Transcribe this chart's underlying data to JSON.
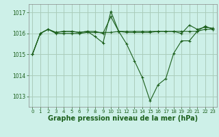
{
  "background_color": "#cdf0e8",
  "grid_color": "#aaccbb",
  "line_color": "#1a5e1a",
  "xlabel": "Graphe pression niveau de la mer (hPa)",
  "xlabel_fontsize": 7,
  "ylim": [
    1012.5,
    1017.4
  ],
  "xlim": [
    -0.5,
    23.5
  ],
  "yticks": [
    1013,
    1014,
    1015,
    1016,
    1017
  ],
  "xticks": [
    0,
    1,
    2,
    3,
    4,
    5,
    6,
    7,
    8,
    9,
    10,
    11,
    12,
    13,
    14,
    15,
    16,
    17,
    18,
    19,
    20,
    21,
    22,
    23
  ],
  "series": [
    [
      1015.0,
      1016.0,
      1016.2,
      1016.0,
      1016.0,
      1016.0,
      1016.0,
      1016.05,
      1016.05,
      1016.05,
      1016.05,
      1016.1,
      1016.1,
      1016.1,
      1016.1,
      1016.1,
      1016.1,
      1016.1,
      1016.1,
      1016.1,
      1016.1,
      1016.1,
      1016.2,
      1016.2
    ],
    [
      1015.0,
      1016.0,
      1016.2,
      1016.05,
      1016.1,
      1016.1,
      1016.05,
      1016.1,
      1016.1,
      1016.0,
      1016.8,
      1016.1,
      1016.05,
      1016.05,
      1016.05,
      1016.05,
      1016.1,
      1016.1,
      1016.1,
      1016.0,
      1016.4,
      1016.2,
      1016.3,
      1016.25
    ],
    [
      1015.0,
      1016.0,
      1016.2,
      1016.05,
      1016.1,
      1016.1,
      1016.05,
      1016.1,
      1015.85,
      1015.55,
      1017.05,
      1016.1,
      1015.5,
      1014.7,
      1013.9,
      1012.78,
      1013.55,
      1013.85,
      1015.05,
      1015.65,
      1015.65,
      1016.1,
      1016.35,
      1016.2
    ]
  ]
}
